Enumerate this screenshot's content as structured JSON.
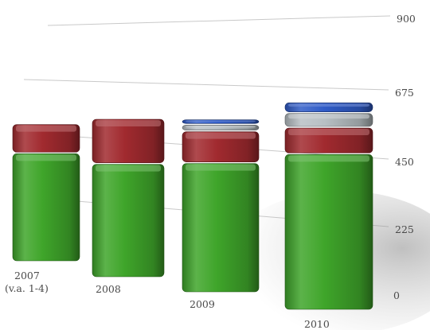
{
  "chart_data": {
    "type": "bar",
    "stacked": true,
    "style": "3d-perspective",
    "categories": [
      "2007\n(v.a. 1-4)",
      "2008",
      "2009",
      "2010"
    ],
    "series": [
      {
        "color": "#3fa52a",
        "values": [
          410,
          430,
          490,
          590
        ]
      },
      {
        "color": "#a12a2f",
        "values": [
          110,
          170,
          120,
          100
        ]
      },
      {
        "color": "#b8c0c4",
        "values": [
          0,
          0,
          25,
          55
        ]
      },
      {
        "color": "#2f5bc7",
        "values": [
          0,
          0,
          20,
          40
        ]
      }
    ],
    "y_ticks": [
      0,
      225,
      450,
      675,
      900
    ],
    "ylim": [
      0,
      900
    ],
    "y_axis_position": "right",
    "grid": true,
    "legend": "none",
    "title": "",
    "xlabel": "",
    "ylabel": ""
  }
}
